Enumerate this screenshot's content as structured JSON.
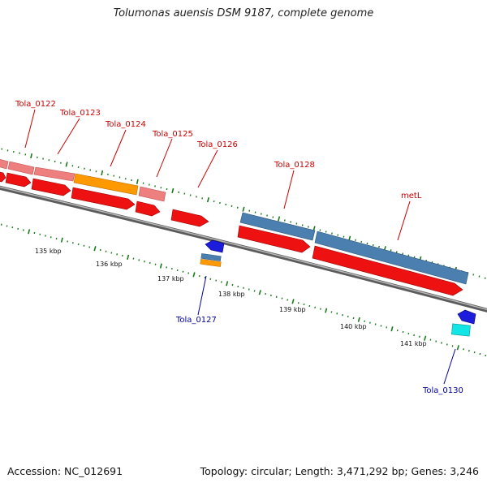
{
  "title": "Tolumonas auensis DSM 9187, complete genome",
  "footer": {
    "accession": "Accession: NC_012691",
    "topology": "Topology: circular; Length: 3,471,292 bp; Genes: 3,246"
  },
  "colors": {
    "cds_forward": "#ee1111",
    "gene_pink": "#ee7f7f",
    "gene_orange": "#ff9900",
    "gene_steelblue": "#4a7fb0",
    "cds_blue": "#1c1cdd",
    "gene_cyan": "#11e5e5",
    "label_red": "#cc0000",
    "label_blue": "#00009a",
    "tick_green": "#1a7a1a",
    "backbone_gray": "#8a8a8a"
  },
  "ruler_labels": [
    "135 kbp",
    "136 kbp",
    "137 kbp",
    "138 kbp",
    "139 kbp",
    "140 kbp",
    "141 kbp"
  ],
  "gene_labels": [
    {
      "name": "Tola_0122",
      "strand": "forward"
    },
    {
      "name": "Tola_0123",
      "strand": "forward"
    },
    {
      "name": "Tola_0124",
      "strand": "forward"
    },
    {
      "name": "Tola_0125",
      "strand": "forward"
    },
    {
      "name": "Tola_0126",
      "strand": "forward"
    },
    {
      "name": "Tola_0128",
      "strand": "forward"
    },
    {
      "name": "metL",
      "strand": "forward"
    },
    {
      "name": "Tola_0127",
      "strand": "reverse"
    },
    {
      "name": "Tola_0130",
      "strand": "reverse"
    }
  ]
}
